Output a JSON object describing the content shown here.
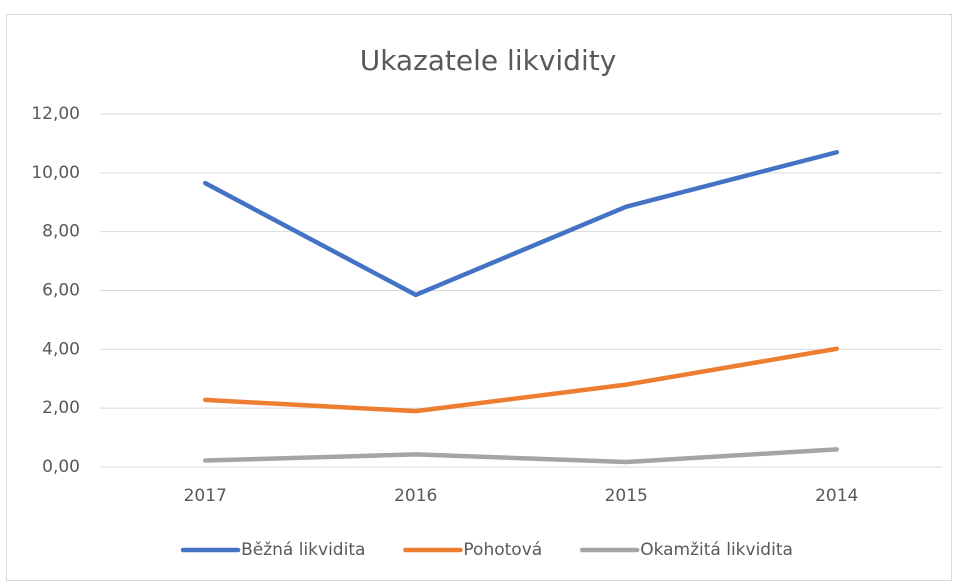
{
  "chart_data": {
    "type": "line",
    "title": "Ukazatele likvidity",
    "categories": [
      "2017",
      "2016",
      "2015",
      "2014"
    ],
    "series": [
      {
        "name": "Běžná likvidita",
        "color": "#4472c4",
        "values": [
          9.65,
          5.85,
          8.85,
          10.7
        ]
      },
      {
        "name": "Pohotová",
        "color": "#ed7d31",
        "values": [
          2.28,
          1.9,
          2.8,
          4.02
        ]
      },
      {
        "name": "Okamžitá likvidita",
        "color": "#a5a5a5",
        "values": [
          0.22,
          0.43,
          0.17,
          0.6
        ]
      }
    ],
    "ylim": [
      0,
      12
    ],
    "yticks": [
      {
        "value": 0,
        "label": "0,00"
      },
      {
        "value": 2,
        "label": "2,00"
      },
      {
        "value": 4,
        "label": "4,00"
      },
      {
        "value": 6,
        "label": "6,00"
      },
      {
        "value": 8,
        "label": "8,00"
      },
      {
        "value": 10,
        "label": "10,00"
      },
      {
        "value": 12,
        "label": "12,00"
      }
    ],
    "grid": true,
    "legend": "bottom"
  }
}
